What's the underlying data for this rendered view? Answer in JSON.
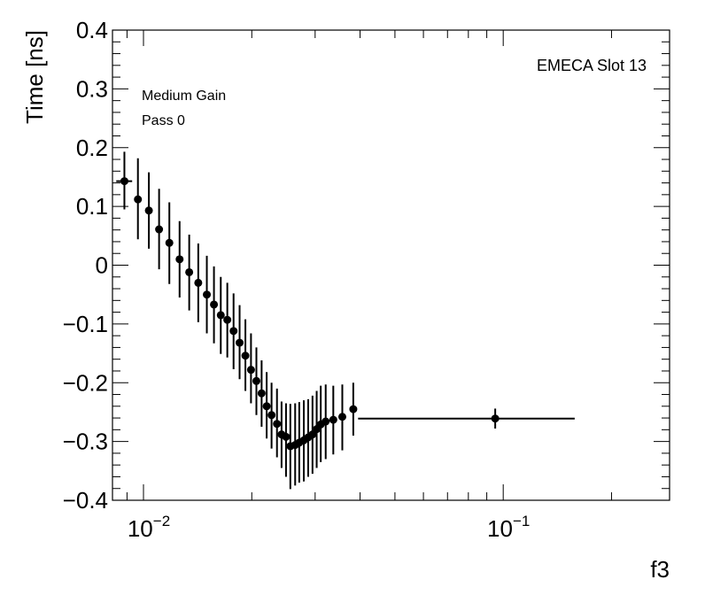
{
  "chart_data": {
    "type": "scatter",
    "title": "",
    "xlabel": "f3",
    "ylabel": "Time [ns]",
    "xscale": "log",
    "xlim": [
      0.0082,
      0.29
    ],
    "ylim": [
      -0.4,
      0.4
    ],
    "grid": false,
    "legend": "none",
    "annotations": [
      "EMECA Slot 13",
      "Medium Gain",
      "Pass 0"
    ],
    "y_ticks": [
      {
        "value": 0.4,
        "label": "0.4"
      },
      {
        "value": 0.3,
        "label": "0.3"
      },
      {
        "value": 0.2,
        "label": "0.2"
      },
      {
        "value": 0.1,
        "label": "0.1"
      },
      {
        "value": 0.0,
        "label": "0"
      },
      {
        "value": -0.1,
        "label": "−0.1"
      },
      {
        "value": -0.2,
        "label": "−0.2"
      },
      {
        "value": -0.3,
        "label": "−0.3"
      },
      {
        "value": -0.4,
        "label": "−0.4"
      }
    ],
    "x_major_ticks": [
      {
        "value": 0.01,
        "base": "10",
        "exp": "−2"
      },
      {
        "value": 0.1,
        "base": "10",
        "exp": "−1"
      }
    ],
    "points": [
      {
        "x": 0.00885,
        "xlo": 0.0084,
        "xhi": 0.0093,
        "y": 0.143,
        "ylo": 0.095,
        "yhi": 0.193
      },
      {
        "x": 0.00965,
        "y": 0.112,
        "ylo": 0.044,
        "yhi": 0.182
      },
      {
        "x": 0.01035,
        "y": 0.093,
        "ylo": 0.028,
        "yhi": 0.158
      },
      {
        "x": 0.01105,
        "y": 0.061,
        "ylo": -0.007,
        "yhi": 0.13
      },
      {
        "x": 0.0118,
        "y": 0.038,
        "ylo": -0.032,
        "yhi": 0.107
      },
      {
        "x": 0.0126,
        "y": 0.01,
        "ylo": -0.055,
        "yhi": 0.075
      },
      {
        "x": 0.0134,
        "y": -0.012,
        "ylo": -0.077,
        "yhi": 0.052
      },
      {
        "x": 0.0142,
        "y": -0.03,
        "ylo": -0.097,
        "yhi": 0.037
      },
      {
        "x": 0.015,
        "y": -0.05,
        "ylo": -0.116,
        "yhi": 0.016
      },
      {
        "x": 0.0157,
        "y": -0.067,
        "ylo": -0.133,
        "yhi": -0.002
      },
      {
        "x": 0.0164,
        "y": -0.085,
        "ylo": -0.151,
        "yhi": -0.02
      },
      {
        "x": 0.0171,
        "y": -0.093,
        "ylo": -0.157,
        "yhi": -0.03
      },
      {
        "x": 0.0178,
        "y": -0.112,
        "ylo": -0.177,
        "yhi": -0.048
      },
      {
        "x": 0.0185,
        "y": -0.132,
        "ylo": -0.194,
        "yhi": -0.068
      },
      {
        "x": 0.0192,
        "y": -0.154,
        "ylo": -0.214,
        "yhi": -0.092
      },
      {
        "x": 0.0199,
        "y": -0.178,
        "ylo": -0.235,
        "yhi": -0.116
      },
      {
        "x": 0.0206,
        "y": -0.197,
        "ylo": -0.255,
        "yhi": -0.14
      },
      {
        "x": 0.0213,
        "y": -0.218,
        "ylo": -0.275,
        "yhi": -0.162
      },
      {
        "x": 0.022,
        "y": -0.24,
        "ylo": -0.295,
        "yhi": -0.182
      },
      {
        "x": 0.0227,
        "y": -0.255,
        "ylo": -0.312,
        "yhi": -0.2
      },
      {
        "x": 0.0235,
        "y": -0.27,
        "ylo": -0.327,
        "yhi": -0.21
      },
      {
        "x": 0.0242,
        "y": -0.288,
        "ylo": -0.345,
        "yhi": -0.232
      },
      {
        "x": 0.0249,
        "y": -0.292,
        "ylo": -0.36,
        "yhi": -0.235
      },
      {
        "x": 0.0256,
        "y": -0.308,
        "ylo": -0.381,
        "yhi": -0.236
      },
      {
        "x": 0.0264,
        "y": -0.306,
        "ylo": -0.375,
        "yhi": -0.235
      },
      {
        "x": 0.0271,
        "y": -0.302,
        "ylo": -0.37,
        "yhi": -0.233
      },
      {
        "x": 0.0279,
        "y": -0.298,
        "ylo": -0.368,
        "yhi": -0.23
      },
      {
        "x": 0.0287,
        "y": -0.293,
        "ylo": -0.36,
        "yhi": -0.228
      },
      {
        "x": 0.0295,
        "y": -0.288,
        "ylo": -0.355,
        "yhi": -0.222
      },
      {
        "x": 0.0303,
        "y": -0.279,
        "ylo": -0.345,
        "yhi": -0.214
      },
      {
        "x": 0.0311,
        "y": -0.271,
        "ylo": -0.335,
        "yhi": -0.205
      },
      {
        "x": 0.0321,
        "y": -0.266,
        "ylo": -0.33,
        "yhi": -0.203
      },
      {
        "x": 0.0337,
        "y": -0.263,
        "ylo": -0.322,
        "yhi": -0.205
      },
      {
        "x": 0.0357,
        "y": -0.258,
        "ylo": -0.315,
        "yhi": -0.203
      },
      {
        "x": 0.0383,
        "y": -0.245,
        "ylo": -0.29,
        "yhi": -0.2
      },
      {
        "x": 0.095,
        "xlo": 0.0395,
        "xhi": 0.158,
        "y": -0.261,
        "ylo": -0.278,
        "yhi": -0.244
      }
    ]
  }
}
